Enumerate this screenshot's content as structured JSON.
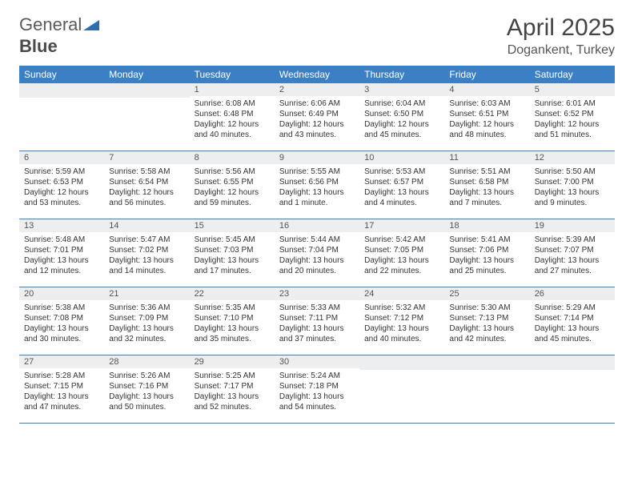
{
  "logo": {
    "text1": "General",
    "text2": "Blue"
  },
  "title": "April 2025",
  "location": "Dogankent, Turkey",
  "day_headers": [
    "Sunday",
    "Monday",
    "Tuesday",
    "Wednesday",
    "Thursday",
    "Friday",
    "Saturday"
  ],
  "colors": {
    "header_bg": "#3b7fc4",
    "header_text": "#ffffff",
    "daynum_bg": "#eceeef",
    "border": "#3b7fc4",
    "text": "#333333"
  },
  "weeks": [
    [
      null,
      null,
      {
        "n": "1",
        "sr": "Sunrise: 6:08 AM",
        "ss": "Sunset: 6:48 PM",
        "dl1": "Daylight: 12 hours",
        "dl2": "and 40 minutes."
      },
      {
        "n": "2",
        "sr": "Sunrise: 6:06 AM",
        "ss": "Sunset: 6:49 PM",
        "dl1": "Daylight: 12 hours",
        "dl2": "and 43 minutes."
      },
      {
        "n": "3",
        "sr": "Sunrise: 6:04 AM",
        "ss": "Sunset: 6:50 PM",
        "dl1": "Daylight: 12 hours",
        "dl2": "and 45 minutes."
      },
      {
        "n": "4",
        "sr": "Sunrise: 6:03 AM",
        "ss": "Sunset: 6:51 PM",
        "dl1": "Daylight: 12 hours",
        "dl2": "and 48 minutes."
      },
      {
        "n": "5",
        "sr": "Sunrise: 6:01 AM",
        "ss": "Sunset: 6:52 PM",
        "dl1": "Daylight: 12 hours",
        "dl2": "and 51 minutes."
      }
    ],
    [
      {
        "n": "6",
        "sr": "Sunrise: 5:59 AM",
        "ss": "Sunset: 6:53 PM",
        "dl1": "Daylight: 12 hours",
        "dl2": "and 53 minutes."
      },
      {
        "n": "7",
        "sr": "Sunrise: 5:58 AM",
        "ss": "Sunset: 6:54 PM",
        "dl1": "Daylight: 12 hours",
        "dl2": "and 56 minutes."
      },
      {
        "n": "8",
        "sr": "Sunrise: 5:56 AM",
        "ss": "Sunset: 6:55 PM",
        "dl1": "Daylight: 12 hours",
        "dl2": "and 59 minutes."
      },
      {
        "n": "9",
        "sr": "Sunrise: 5:55 AM",
        "ss": "Sunset: 6:56 PM",
        "dl1": "Daylight: 13 hours",
        "dl2": "and 1 minute."
      },
      {
        "n": "10",
        "sr": "Sunrise: 5:53 AM",
        "ss": "Sunset: 6:57 PM",
        "dl1": "Daylight: 13 hours",
        "dl2": "and 4 minutes."
      },
      {
        "n": "11",
        "sr": "Sunrise: 5:51 AM",
        "ss": "Sunset: 6:58 PM",
        "dl1": "Daylight: 13 hours",
        "dl2": "and 7 minutes."
      },
      {
        "n": "12",
        "sr": "Sunrise: 5:50 AM",
        "ss": "Sunset: 7:00 PM",
        "dl1": "Daylight: 13 hours",
        "dl2": "and 9 minutes."
      }
    ],
    [
      {
        "n": "13",
        "sr": "Sunrise: 5:48 AM",
        "ss": "Sunset: 7:01 PM",
        "dl1": "Daylight: 13 hours",
        "dl2": "and 12 minutes."
      },
      {
        "n": "14",
        "sr": "Sunrise: 5:47 AM",
        "ss": "Sunset: 7:02 PM",
        "dl1": "Daylight: 13 hours",
        "dl2": "and 14 minutes."
      },
      {
        "n": "15",
        "sr": "Sunrise: 5:45 AM",
        "ss": "Sunset: 7:03 PM",
        "dl1": "Daylight: 13 hours",
        "dl2": "and 17 minutes."
      },
      {
        "n": "16",
        "sr": "Sunrise: 5:44 AM",
        "ss": "Sunset: 7:04 PM",
        "dl1": "Daylight: 13 hours",
        "dl2": "and 20 minutes."
      },
      {
        "n": "17",
        "sr": "Sunrise: 5:42 AM",
        "ss": "Sunset: 7:05 PM",
        "dl1": "Daylight: 13 hours",
        "dl2": "and 22 minutes."
      },
      {
        "n": "18",
        "sr": "Sunrise: 5:41 AM",
        "ss": "Sunset: 7:06 PM",
        "dl1": "Daylight: 13 hours",
        "dl2": "and 25 minutes."
      },
      {
        "n": "19",
        "sr": "Sunrise: 5:39 AM",
        "ss": "Sunset: 7:07 PM",
        "dl1": "Daylight: 13 hours",
        "dl2": "and 27 minutes."
      }
    ],
    [
      {
        "n": "20",
        "sr": "Sunrise: 5:38 AM",
        "ss": "Sunset: 7:08 PM",
        "dl1": "Daylight: 13 hours",
        "dl2": "and 30 minutes."
      },
      {
        "n": "21",
        "sr": "Sunrise: 5:36 AM",
        "ss": "Sunset: 7:09 PM",
        "dl1": "Daylight: 13 hours",
        "dl2": "and 32 minutes."
      },
      {
        "n": "22",
        "sr": "Sunrise: 5:35 AM",
        "ss": "Sunset: 7:10 PM",
        "dl1": "Daylight: 13 hours",
        "dl2": "and 35 minutes."
      },
      {
        "n": "23",
        "sr": "Sunrise: 5:33 AM",
        "ss": "Sunset: 7:11 PM",
        "dl1": "Daylight: 13 hours",
        "dl2": "and 37 minutes."
      },
      {
        "n": "24",
        "sr": "Sunrise: 5:32 AM",
        "ss": "Sunset: 7:12 PM",
        "dl1": "Daylight: 13 hours",
        "dl2": "and 40 minutes."
      },
      {
        "n": "25",
        "sr": "Sunrise: 5:30 AM",
        "ss": "Sunset: 7:13 PM",
        "dl1": "Daylight: 13 hours",
        "dl2": "and 42 minutes."
      },
      {
        "n": "26",
        "sr": "Sunrise: 5:29 AM",
        "ss": "Sunset: 7:14 PM",
        "dl1": "Daylight: 13 hours",
        "dl2": "and 45 minutes."
      }
    ],
    [
      {
        "n": "27",
        "sr": "Sunrise: 5:28 AM",
        "ss": "Sunset: 7:15 PM",
        "dl1": "Daylight: 13 hours",
        "dl2": "and 47 minutes."
      },
      {
        "n": "28",
        "sr": "Sunrise: 5:26 AM",
        "ss": "Sunset: 7:16 PM",
        "dl1": "Daylight: 13 hours",
        "dl2": "and 50 minutes."
      },
      {
        "n": "29",
        "sr": "Sunrise: 5:25 AM",
        "ss": "Sunset: 7:17 PM",
        "dl1": "Daylight: 13 hours",
        "dl2": "and 52 minutes."
      },
      {
        "n": "30",
        "sr": "Sunrise: 5:24 AM",
        "ss": "Sunset: 7:18 PM",
        "dl1": "Daylight: 13 hours",
        "dl2": "and 54 minutes."
      },
      null,
      null,
      null
    ]
  ]
}
